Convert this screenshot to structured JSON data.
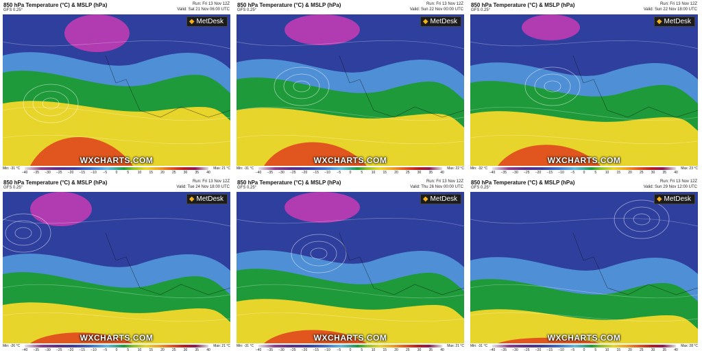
{
  "common": {
    "title": "850 hPa Temperature (°C) & MSLP (hPa)",
    "model": "GFS 0.25°",
    "run": "Run: Fri 13 Nov 12Z",
    "logo": "MetDesk",
    "brand": "WXCHARTS.COM",
    "scale_ticks": [
      "−40",
      "−35",
      "−30",
      "−25",
      "−20",
      "−15",
      "−10",
      "−5",
      "0",
      "5",
      "10",
      "15",
      "20",
      "25",
      "30",
      "35",
      "40"
    ]
  },
  "panels": [
    {
      "valid": "Valid: Sat 21 Nov 06:00 UTC",
      "min": "Min: -31 °C",
      "max": "Max: 21 °C"
    },
    {
      "valid": "Valid: Sun 22 Nov 00:00 UTC",
      "min": "Min: -31 °C",
      "max": "Max: 22 °C"
    },
    {
      "valid": "Valid: Sun 22 Nov 18:00 UTC",
      "min": "Min: -32 °C",
      "max": "Max: 23 °C"
    },
    {
      "valid": "Valid: Tue 24 Nov 18:00 UTC",
      "min": "Min: -26 °C",
      "max": "Max: 21 °C"
    },
    {
      "valid": "Valid: Thu 26 Nov 00:00 UTC",
      "min": "Min: -31 °C",
      "max": "Max: 21 °C"
    },
    {
      "valid": "Valid: Sun 29 Nov 12:00 UTC",
      "min": "Min: -31 °C",
      "max": "Max: 28 °C"
    }
  ],
  "colors": {
    "polar": "#b13bb0",
    "very_cold": "#5a2f8e",
    "cold": "#2f3f9e",
    "cool": "#4f8fd6",
    "mild": "#1f9a3a",
    "warm": "#e8d52b",
    "hot": "#e0561e"
  }
}
